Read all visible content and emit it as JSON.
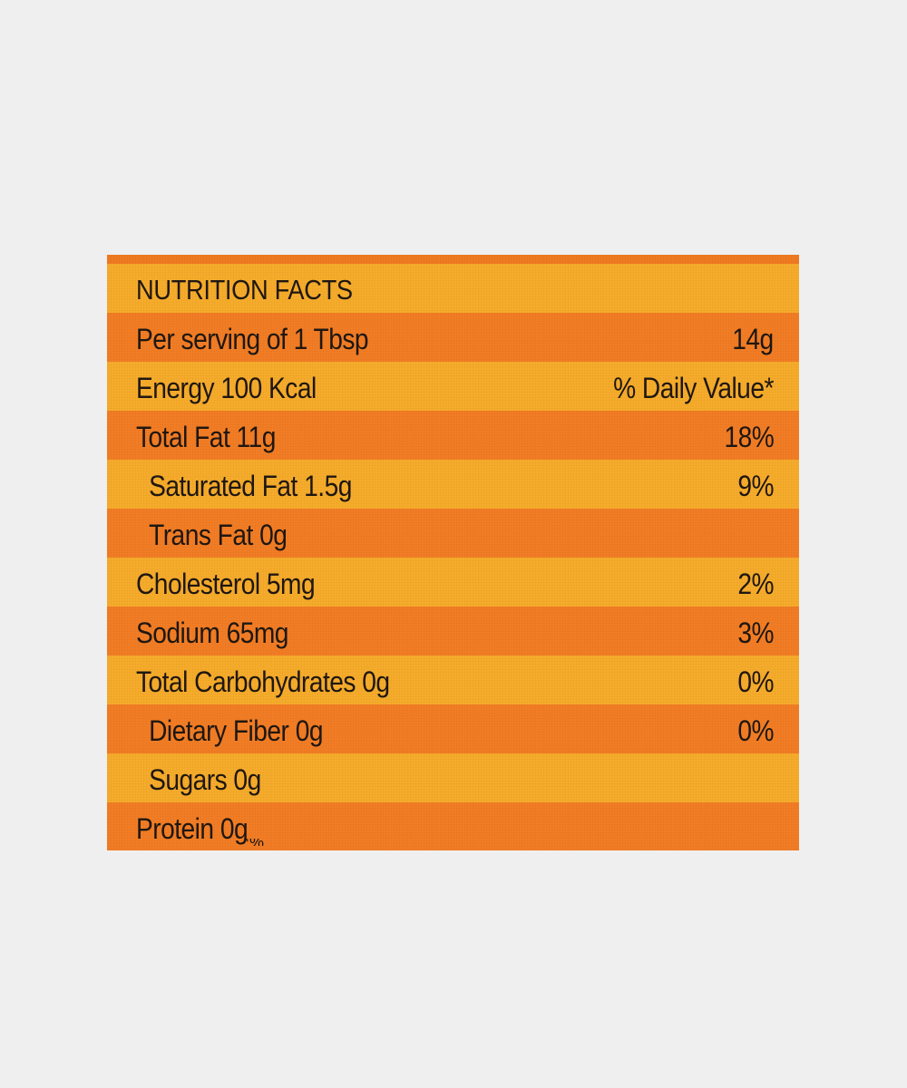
{
  "label": {
    "title": "NUTRITION FACTS",
    "serving": {
      "name": "Per serving of 1 Tbsp",
      "value": "14g"
    },
    "energy": {
      "name": "Energy 100 Kcal",
      "value": "% Daily Value*"
    },
    "rows": [
      {
        "name": "Total Fat 11g",
        "value": "18%",
        "sub": false
      },
      {
        "name": "Saturated Fat 1.5g",
        "value": "9%",
        "sub": true
      },
      {
        "name": "Trans Fat 0g",
        "value": "",
        "sub": true
      },
      {
        "name": "Cholesterol 5mg",
        "value": "2%",
        "sub": false
      },
      {
        "name": "Sodium 65mg",
        "value": "3%",
        "sub": false
      },
      {
        "name": "Total Carbohydrates 0g",
        "value": "0%",
        "sub": false
      },
      {
        "name": "Dietary Fiber 0g",
        "value": "0%",
        "sub": true
      },
      {
        "name": "Sugars 0g",
        "value": "",
        "sub": true
      },
      {
        "name": "Protein 0g",
        "value": "",
        "sub": false
      }
    ],
    "colors": {
      "yellow_band": "#f6ac2b",
      "orange_band": "#f27d25",
      "text": "#1c1612",
      "background": "#efefef"
    }
  }
}
